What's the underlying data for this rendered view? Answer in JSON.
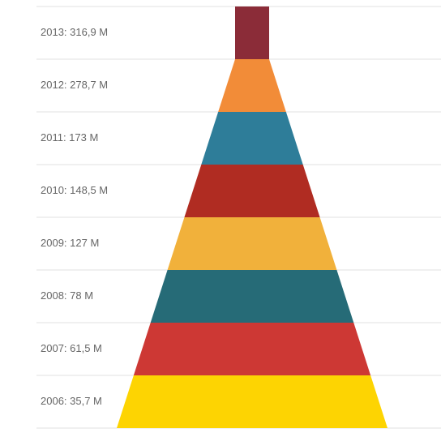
{
  "chart_data": {
    "type": "pyramid",
    "values": [
      316.9,
      278.7,
      173,
      148.5,
      127,
      78,
      61.5,
      35.7
    ],
    "value_labels": [
      "2013: 316,9 M",
      "2012: 278,7 M",
      "2011: 173 M",
      "2010: 148,5 M",
      "2009: 127 M",
      "2008: 78 M",
      "2007: 61,5 M",
      "2006: 35,7 M"
    ],
    "colors": [
      "#8b2c38",
      "#f28c38",
      "#2e7d99",
      "#b02c22",
      "#f1b13b",
      "#266b77",
      "#cd3834",
      "#fdd402"
    ]
  }
}
